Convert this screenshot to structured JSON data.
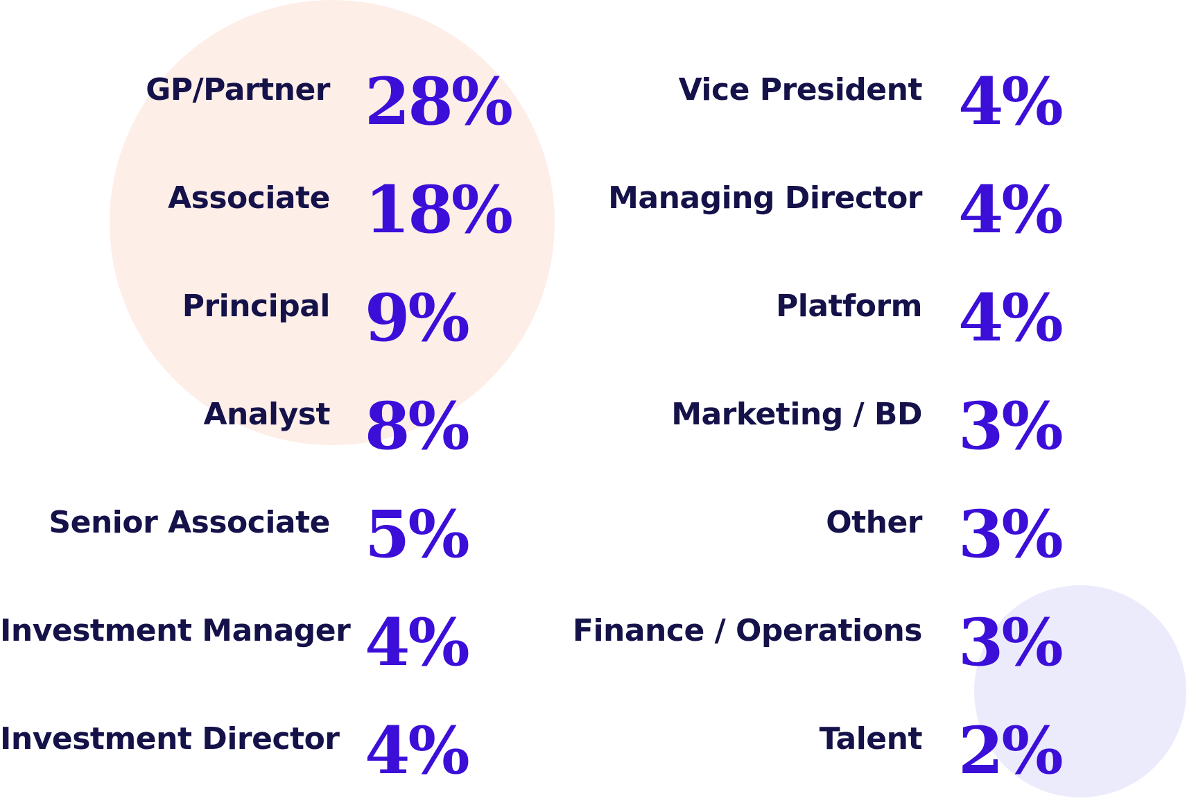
{
  "colors": {
    "label": "#15124a",
    "value": "#3b0fd8",
    "circle_peach": "#fdeee8",
    "circle_lavender": "#ecebfc"
  },
  "left_column": [
    {
      "label": "GP/Partner",
      "value": "28%"
    },
    {
      "label": "Associate",
      "value": "18%"
    },
    {
      "label": "Principal",
      "value": "9%"
    },
    {
      "label": "Analyst",
      "value": "8%"
    },
    {
      "label": "Senior Associate",
      "value": "5%"
    },
    {
      "label": "Investment Manager",
      "value": "4%"
    },
    {
      "label": "Investment Director",
      "value": "4%"
    }
  ],
  "right_column": [
    {
      "label": "Vice President",
      "value": "4%"
    },
    {
      "label": "Managing Director",
      "value": "4%"
    },
    {
      "label": "Platform",
      "value": "4%"
    },
    {
      "label": "Marketing / BD",
      "value": "3%"
    },
    {
      "label": "Other",
      "value": "3%"
    },
    {
      "label": "Finance / Operations",
      "value": "3%"
    },
    {
      "label": "Talent",
      "value": "2%"
    }
  ]
}
